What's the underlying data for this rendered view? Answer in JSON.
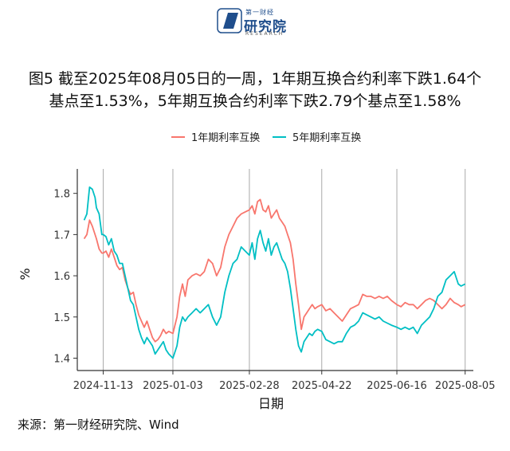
{
  "header": {
    "logo_top": "第一财经",
    "logo_name": "研究院",
    "logo_sub": "RESEARCH"
  },
  "title": {
    "line1": "图5  截至2025年08月05日的一周，1年期互换合约利率下跌1.64个",
    "line2": "基点至1.53%，5年期互换合约利率下跌2.79个基点至1.58%"
  },
  "source": "来源：第一财经研究院、Wind",
  "chart_data": {
    "type": "line",
    "xlabel": "日期",
    "ylabel": "%",
    "ylim": [
      1.37,
      1.84
    ],
    "xlim": [
      "2024-10-25",
      "2025-08-11"
    ],
    "y_ticks": [
      1.4,
      1.5,
      1.6,
      1.7,
      1.8
    ],
    "x_ticks": [
      "2024-11-13",
      "2025-01-03",
      "2025-02-28",
      "2025-04-22",
      "2025-06-16",
      "2025-08-05"
    ],
    "grid": "vertical lines at x ticks",
    "legend_position": "top",
    "series": [
      {
        "name": "1年期利率互换",
        "color": "#F8766D",
        "points": [
          [
            "2024-10-30",
            1.69
          ],
          [
            "2024-11-01",
            1.7
          ],
          [
            "2024-11-03",
            1.735
          ],
          [
            "2024-11-05",
            1.72
          ],
          [
            "2024-11-07",
            1.7
          ],
          [
            "2024-11-08",
            1.69
          ],
          [
            "2024-11-10",
            1.665
          ],
          [
            "2024-11-12",
            1.655
          ],
          [
            "2024-11-13",
            1.655
          ],
          [
            "2024-11-15",
            1.66
          ],
          [
            "2024-11-17",
            1.645
          ],
          [
            "2024-11-19",
            1.665
          ],
          [
            "2024-11-21",
            1.645
          ],
          [
            "2024-11-23",
            1.625
          ],
          [
            "2024-11-25",
            1.615
          ],
          [
            "2024-11-27",
            1.62
          ],
          [
            "2024-11-29",
            1.59
          ],
          [
            "2024-12-01",
            1.57
          ],
          [
            "2024-12-03",
            1.555
          ],
          [
            "2024-12-05",
            1.56
          ],
          [
            "2024-12-07",
            1.53
          ],
          [
            "2024-12-09",
            1.505
          ],
          [
            "2024-12-11",
            1.49
          ],
          [
            "2024-12-13",
            1.475
          ],
          [
            "2024-12-15",
            1.49
          ],
          [
            "2024-12-17",
            1.47
          ],
          [
            "2024-12-19",
            1.45
          ],
          [
            "2024-12-21",
            1.44
          ],
          [
            "2024-12-23",
            1.445
          ],
          [
            "2024-12-25",
            1.455
          ],
          [
            "2024-12-27",
            1.47
          ],
          [
            "2024-12-29",
            1.46
          ],
          [
            "2024-12-31",
            1.465
          ],
          [
            "2025-01-03",
            1.46
          ],
          [
            "2025-01-06",
            1.5
          ],
          [
            "2025-01-08",
            1.55
          ],
          [
            "2025-01-10",
            1.58
          ],
          [
            "2025-01-12",
            1.55
          ],
          [
            "2025-01-14",
            1.59
          ],
          [
            "2025-01-17",
            1.6
          ],
          [
            "2025-01-20",
            1.605
          ],
          [
            "2025-01-23",
            1.6
          ],
          [
            "2025-01-26",
            1.61
          ],
          [
            "2025-01-29",
            1.64
          ],
          [
            "2025-02-01",
            1.63
          ],
          [
            "2025-02-04",
            1.6
          ],
          [
            "2025-02-07",
            1.62
          ],
          [
            "2025-02-10",
            1.67
          ],
          [
            "2025-02-13",
            1.7
          ],
          [
            "2025-02-16",
            1.72
          ],
          [
            "2025-02-19",
            1.74
          ],
          [
            "2025-02-22",
            1.75
          ],
          [
            "2025-02-25",
            1.755
          ],
          [
            "2025-02-28",
            1.76
          ],
          [
            "2025-03-02",
            1.77
          ],
          [
            "2025-03-04",
            1.75
          ],
          [
            "2025-03-06",
            1.78
          ],
          [
            "2025-03-08",
            1.785
          ],
          [
            "2025-03-10",
            1.76
          ],
          [
            "2025-03-12",
            1.755
          ],
          [
            "2025-03-14",
            1.77
          ],
          [
            "2025-03-16",
            1.74
          ],
          [
            "2025-03-18",
            1.75
          ],
          [
            "2025-03-20",
            1.76
          ],
          [
            "2025-03-22",
            1.74
          ],
          [
            "2025-03-24",
            1.73
          ],
          [
            "2025-03-26",
            1.72
          ],
          [
            "2025-03-28",
            1.7
          ],
          [
            "2025-03-30",
            1.68
          ],
          [
            "2025-04-01",
            1.64
          ],
          [
            "2025-04-03",
            1.58
          ],
          [
            "2025-04-05",
            1.53
          ],
          [
            "2025-04-07",
            1.47
          ],
          [
            "2025-04-09",
            1.5
          ],
          [
            "2025-04-11",
            1.51
          ],
          [
            "2025-04-13",
            1.52
          ],
          [
            "2025-04-15",
            1.53
          ],
          [
            "2025-04-17",
            1.52
          ],
          [
            "2025-04-19",
            1.525
          ],
          [
            "2025-04-22",
            1.53
          ],
          [
            "2025-04-25",
            1.515
          ],
          [
            "2025-04-28",
            1.52
          ],
          [
            "2025-05-01",
            1.51
          ],
          [
            "2025-05-04",
            1.5
          ],
          [
            "2025-05-07",
            1.49
          ],
          [
            "2025-05-10",
            1.505
          ],
          [
            "2025-05-13",
            1.52
          ],
          [
            "2025-05-16",
            1.525
          ],
          [
            "2025-05-19",
            1.53
          ],
          [
            "2025-05-22",
            1.555
          ],
          [
            "2025-05-25",
            1.55
          ],
          [
            "2025-05-28",
            1.55
          ],
          [
            "2025-05-31",
            1.545
          ],
          [
            "2025-06-03",
            1.55
          ],
          [
            "2025-06-06",
            1.545
          ],
          [
            "2025-06-09",
            1.55
          ],
          [
            "2025-06-12",
            1.54
          ],
          [
            "2025-06-16",
            1.53
          ],
          [
            "2025-06-19",
            1.525
          ],
          [
            "2025-06-22",
            1.535
          ],
          [
            "2025-06-25",
            1.53
          ],
          [
            "2025-06-28",
            1.53
          ],
          [
            "2025-07-01",
            1.52
          ],
          [
            "2025-07-04",
            1.53
          ],
          [
            "2025-07-07",
            1.54
          ],
          [
            "2025-07-10",
            1.545
          ],
          [
            "2025-07-13",
            1.54
          ],
          [
            "2025-07-16",
            1.53
          ],
          [
            "2025-07-19",
            1.52
          ],
          [
            "2025-07-22",
            1.53
          ],
          [
            "2025-07-25",
            1.545
          ],
          [
            "2025-07-28",
            1.535
          ],
          [
            "2025-07-31",
            1.53
          ],
          [
            "2025-08-02",
            1.525
          ],
          [
            "2025-08-05",
            1.53
          ]
        ]
      },
      {
        "name": "5年期利率互换",
        "color": "#00BFC4",
        "points": [
          [
            "2024-10-30",
            1.735
          ],
          [
            "2024-11-01",
            1.75
          ],
          [
            "2024-11-03",
            1.815
          ],
          [
            "2024-11-05",
            1.81
          ],
          [
            "2024-11-07",
            1.79
          ],
          [
            "2024-11-08",
            1.765
          ],
          [
            "2024-11-10",
            1.75
          ],
          [
            "2024-11-12",
            1.7
          ],
          [
            "2024-11-13",
            1.7
          ],
          [
            "2024-11-15",
            1.695
          ],
          [
            "2024-11-17",
            1.675
          ],
          [
            "2024-11-19",
            1.69
          ],
          [
            "2024-11-21",
            1.66
          ],
          [
            "2024-11-23",
            1.65
          ],
          [
            "2024-11-25",
            1.63
          ],
          [
            "2024-11-27",
            1.63
          ],
          [
            "2024-11-29",
            1.6
          ],
          [
            "2024-12-01",
            1.57
          ],
          [
            "2024-12-03",
            1.54
          ],
          [
            "2024-12-05",
            1.53
          ],
          [
            "2024-12-07",
            1.5
          ],
          [
            "2024-12-09",
            1.47
          ],
          [
            "2024-12-11",
            1.45
          ],
          [
            "2024-12-13",
            1.435
          ],
          [
            "2024-12-15",
            1.45
          ],
          [
            "2024-12-17",
            1.44
          ],
          [
            "2024-12-19",
            1.43
          ],
          [
            "2024-12-21",
            1.41
          ],
          [
            "2024-12-23",
            1.42
          ],
          [
            "2024-12-25",
            1.43
          ],
          [
            "2024-12-27",
            1.44
          ],
          [
            "2024-12-29",
            1.42
          ],
          [
            "2024-12-31",
            1.41
          ],
          [
            "2025-01-03",
            1.4
          ],
          [
            "2025-01-06",
            1.43
          ],
          [
            "2025-01-08",
            1.475
          ],
          [
            "2025-01-10",
            1.5
          ],
          [
            "2025-01-12",
            1.49
          ],
          [
            "2025-01-14",
            1.5
          ],
          [
            "2025-01-17",
            1.51
          ],
          [
            "2025-01-20",
            1.52
          ],
          [
            "2025-01-23",
            1.51
          ],
          [
            "2025-01-26",
            1.52
          ],
          [
            "2025-01-29",
            1.53
          ],
          [
            "2025-02-01",
            1.5
          ],
          [
            "2025-02-04",
            1.48
          ],
          [
            "2025-02-07",
            1.5
          ],
          [
            "2025-02-10",
            1.56
          ],
          [
            "2025-02-13",
            1.6
          ],
          [
            "2025-02-16",
            1.63
          ],
          [
            "2025-02-19",
            1.64
          ],
          [
            "2025-02-22",
            1.67
          ],
          [
            "2025-02-25",
            1.66
          ],
          [
            "2025-02-28",
            1.65
          ],
          [
            "2025-03-02",
            1.68
          ],
          [
            "2025-03-04",
            1.64
          ],
          [
            "2025-03-06",
            1.69
          ],
          [
            "2025-03-08",
            1.71
          ],
          [
            "2025-03-10",
            1.68
          ],
          [
            "2025-03-12",
            1.66
          ],
          [
            "2025-03-14",
            1.69
          ],
          [
            "2025-03-16",
            1.65
          ],
          [
            "2025-03-18",
            1.67
          ],
          [
            "2025-03-20",
            1.68
          ],
          [
            "2025-03-22",
            1.66
          ],
          [
            "2025-03-24",
            1.64
          ],
          [
            "2025-03-26",
            1.63
          ],
          [
            "2025-03-28",
            1.61
          ],
          [
            "2025-03-30",
            1.57
          ],
          [
            "2025-04-01",
            1.52
          ],
          [
            "2025-04-03",
            1.47
          ],
          [
            "2025-04-05",
            1.43
          ],
          [
            "2025-04-07",
            1.415
          ],
          [
            "2025-04-09",
            1.44
          ],
          [
            "2025-04-11",
            1.45
          ],
          [
            "2025-04-13",
            1.46
          ],
          [
            "2025-04-15",
            1.455
          ],
          [
            "2025-04-17",
            1.465
          ],
          [
            "2025-04-19",
            1.47
          ],
          [
            "2025-04-22",
            1.465
          ],
          [
            "2025-04-25",
            1.445
          ],
          [
            "2025-04-28",
            1.44
          ],
          [
            "2025-05-01",
            1.435
          ],
          [
            "2025-05-04",
            1.44
          ],
          [
            "2025-05-07",
            1.44
          ],
          [
            "2025-05-10",
            1.46
          ],
          [
            "2025-05-13",
            1.475
          ],
          [
            "2025-05-16",
            1.48
          ],
          [
            "2025-05-19",
            1.49
          ],
          [
            "2025-05-22",
            1.51
          ],
          [
            "2025-05-25",
            1.505
          ],
          [
            "2025-05-28",
            1.5
          ],
          [
            "2025-05-31",
            1.495
          ],
          [
            "2025-06-03",
            1.5
          ],
          [
            "2025-06-06",
            1.49
          ],
          [
            "2025-06-09",
            1.485
          ],
          [
            "2025-06-12",
            1.48
          ],
          [
            "2025-06-16",
            1.475
          ],
          [
            "2025-06-19",
            1.47
          ],
          [
            "2025-06-22",
            1.475
          ],
          [
            "2025-06-25",
            1.47
          ],
          [
            "2025-06-28",
            1.475
          ],
          [
            "2025-07-01",
            1.46
          ],
          [
            "2025-07-04",
            1.48
          ],
          [
            "2025-07-07",
            1.49
          ],
          [
            "2025-07-10",
            1.5
          ],
          [
            "2025-07-13",
            1.52
          ],
          [
            "2025-07-16",
            1.55
          ],
          [
            "2025-07-19",
            1.56
          ],
          [
            "2025-07-22",
            1.59
          ],
          [
            "2025-07-25",
            1.6
          ],
          [
            "2025-07-28",
            1.61
          ],
          [
            "2025-07-31",
            1.58
          ],
          [
            "2025-08-02",
            1.575
          ],
          [
            "2025-08-05",
            1.58
          ]
        ]
      }
    ]
  }
}
